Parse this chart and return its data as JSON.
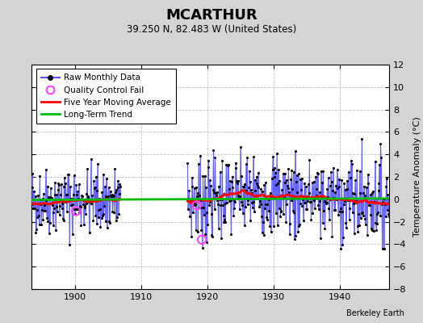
{
  "title": "MCARTHUR",
  "subtitle": "39.250 N, 82.483 W (United States)",
  "ylabel": "Temperature Anomaly (°C)",
  "attribution": "Berkeley Earth",
  "xlim": [
    1893.5,
    1947.5
  ],
  "ylim": [
    -8,
    12
  ],
  "yticks": [
    -8,
    -6,
    -4,
    -2,
    0,
    2,
    4,
    6,
    8,
    10,
    12
  ],
  "xticks": [
    1900,
    1910,
    1920,
    1930,
    1940
  ],
  "background_color": "#d4d4d4",
  "plot_bg_color": "#ffffff",
  "raw_line_color": "#5555ff",
  "raw_dot_color": "#000000",
  "ma_color": "#ff0000",
  "trend_color": "#00bb00",
  "qc_color": "#ff44ff",
  "grid_color": "#bbbbbb",
  "period1_start": 1893,
  "period1_end": 1906,
  "period2_start": 1917,
  "period2_end": 1947,
  "seed1": 42,
  "seed2": 7,
  "noise1": 1.5,
  "noise2": 1.9
}
